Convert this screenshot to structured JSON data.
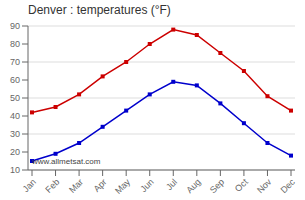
{
  "chart_data": {
    "type": "line",
    "title": "Denver : temperatures (°F)",
    "categories": [
      "Jan",
      "Feb",
      "Mar",
      "Apr",
      "May",
      "Jun",
      "Jul",
      "Aug",
      "Sep",
      "Oct",
      "Nov",
      "Dec"
    ],
    "series": [
      {
        "color": "#cc0000",
        "marker": "square",
        "values": [
          42,
          45,
          52,
          62,
          70,
          80,
          88,
          85,
          75,
          65,
          51,
          43
        ]
      },
      {
        "color": "#0000cc",
        "marker": "square",
        "values": [
          15,
          19,
          25,
          34,
          43,
          52,
          59,
          57,
          47,
          36,
          25,
          18
        ]
      }
    ],
    "ylim": [
      10,
      90
    ],
    "yticks": [
      10,
      20,
      30,
      40,
      50,
      60,
      70,
      80,
      90
    ],
    "grid": true,
    "annotations": [
      "www.allmetsat.com"
    ]
  }
}
